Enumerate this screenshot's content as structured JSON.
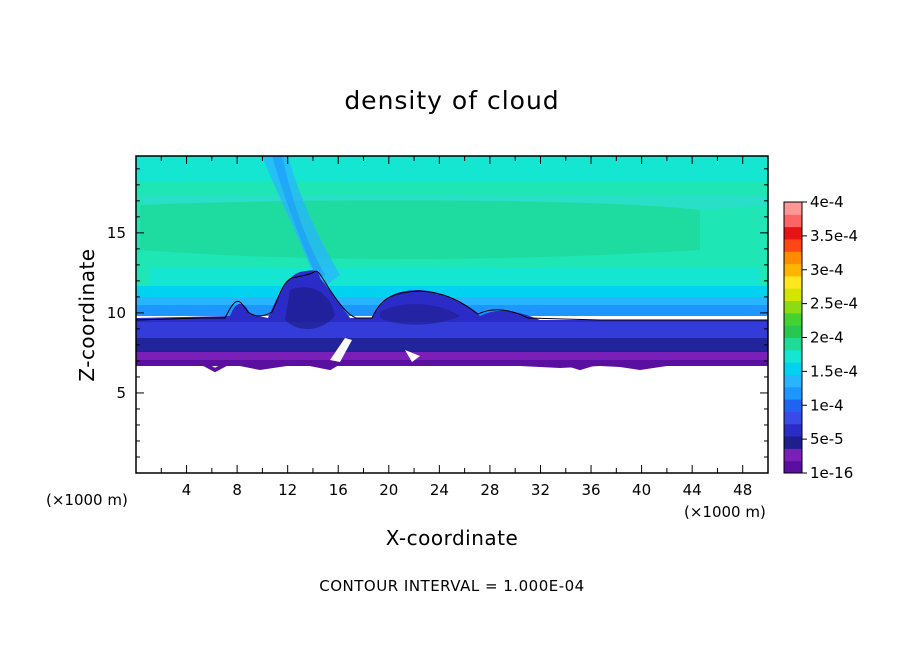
{
  "chart_data": {
    "type": "heatmap",
    "title": "density of cloud",
    "xlabel": "X-coordinate",
    "ylabel": "Z-coordinate",
    "x_unit_label": "(×1000 m)",
    "x_unit_label_right": "(×1000 m)",
    "xlim": [
      0,
      50
    ],
    "ylim": [
      0,
      19.8
    ],
    "xticks": [
      4,
      8,
      12,
      16,
      20,
      24,
      28,
      32,
      36,
      40,
      44,
      48
    ],
    "yticks": [
      5,
      10,
      15
    ],
    "colorbar": {
      "levels": [
        "1e-16",
        "5e-5",
        "1e-4",
        "1.5e-4",
        "2e-4",
        "2.5e-4",
        "3e-4",
        "3.5e-4",
        "4e-4"
      ],
      "colors": [
        "#5a0fa0",
        "#7a1fb8",
        "#1e1e8c",
        "#2b2bc8",
        "#3a4ae6",
        "#1e64f0",
        "#1e96ff",
        "#28b4ff",
        "#00d2f0",
        "#14e6d2",
        "#1edc96",
        "#28c850",
        "#44d232",
        "#8cdc14",
        "#d2e600",
        "#ffe61e",
        "#ffb400",
        "#ff8c00",
        "#ff4614",
        "#e61414",
        "#ff6464",
        "#ff9696"
      ]
    },
    "contour_line_value": "1e-4",
    "footer": "CONTOUR INTERVAL = 1.000E-04"
  }
}
